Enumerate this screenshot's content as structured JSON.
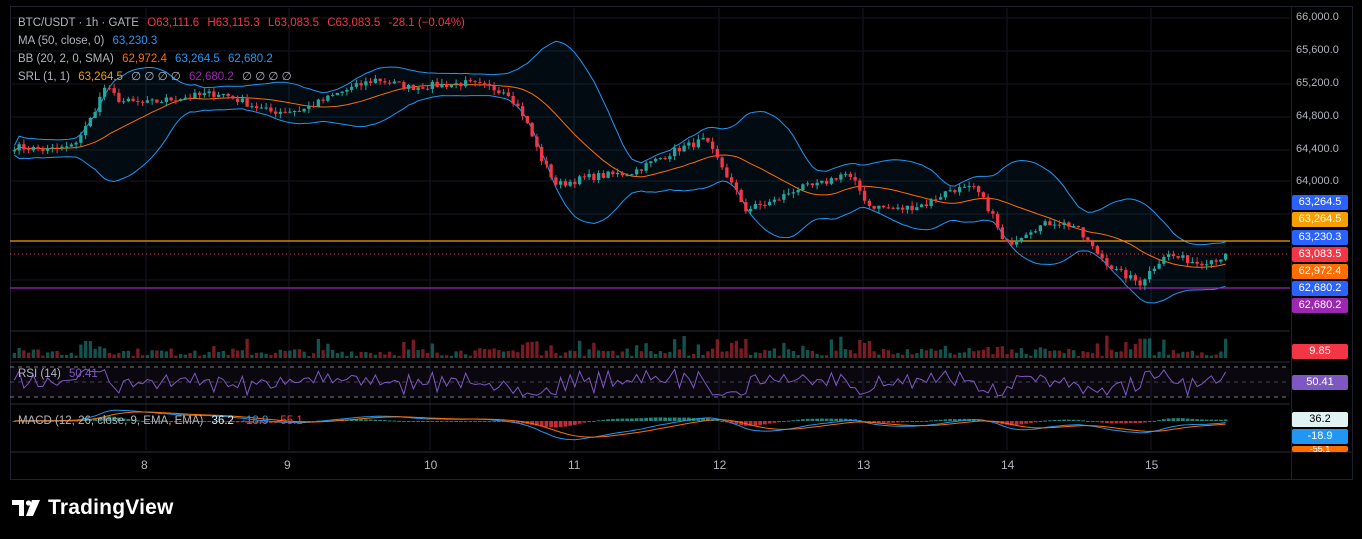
{
  "legend": {
    "symbol": "BTC/USDT · 1h · GATE",
    "open": "O63,111.6",
    "high": "H63,115.3",
    "low": "L63,083.5",
    "close": "C63,083.5",
    "change": "-28.1 (−0.04%)",
    "ma_label": "MA (50, close, 0)",
    "ma_value": "63,230.3",
    "bb_label": "BB (20, 2, 0, SMA)",
    "bb_basis": "62,972.4",
    "bb_upper": "63,264.5",
    "bb_lower": "62,680.2",
    "srl_label": "SRL (1, 1)",
    "srl_v1": "63,264.5",
    "srl_zeros1": "∅ ∅ ∅ ∅",
    "srl_v2": "62,680.2",
    "srl_zeros2": "∅ ∅ ∅ ∅"
  },
  "y_axis": [
    "66,000.0",
    "65,600.0",
    "65,200.0",
    "64,800.0",
    "64,400.0",
    "64,000.0"
  ],
  "x_axis": [
    "8",
    "9",
    "10",
    "11",
    "12",
    "13",
    "14",
    "15"
  ],
  "price_tags": [
    {
      "text": "63,264.5",
      "color": "#2962ff"
    },
    {
      "text": "63,264.5",
      "color": "#f5a000"
    },
    {
      "text": "63,230.3",
      "color": "#2962ff"
    },
    {
      "text": "63,083.5",
      "color": "#f23645"
    },
    {
      "text": "62,972.4",
      "color": "#ff6d00"
    },
    {
      "text": "62,680.2",
      "color": "#2962ff"
    },
    {
      "text": "62,680.2",
      "color": "#9c27b0"
    }
  ],
  "volume_tag": {
    "text": "9.85",
    "color": "#f23645"
  },
  "rsi": {
    "label": "RSI (14)",
    "value": "50.41",
    "tag": "50.41",
    "color": "#7e57c2"
  },
  "macd": {
    "label": "MACD (12, 26, close, 9, EMA, EMA)",
    "v1": "36.2",
    "v2": "-18.9",
    "v3": "-55.1",
    "tag1": "36.2",
    "tag2": "-18.9",
    "tag3": "-55.1"
  },
  "brand": {
    "name": "TradingView"
  },
  "colors": {
    "up": "#26a69a",
    "down": "#f23645",
    "bb": "#2196f3",
    "ma": "#ff6d00",
    "srl_upper": "#f5a000",
    "srl_lower": "#9c27b0"
  }
}
